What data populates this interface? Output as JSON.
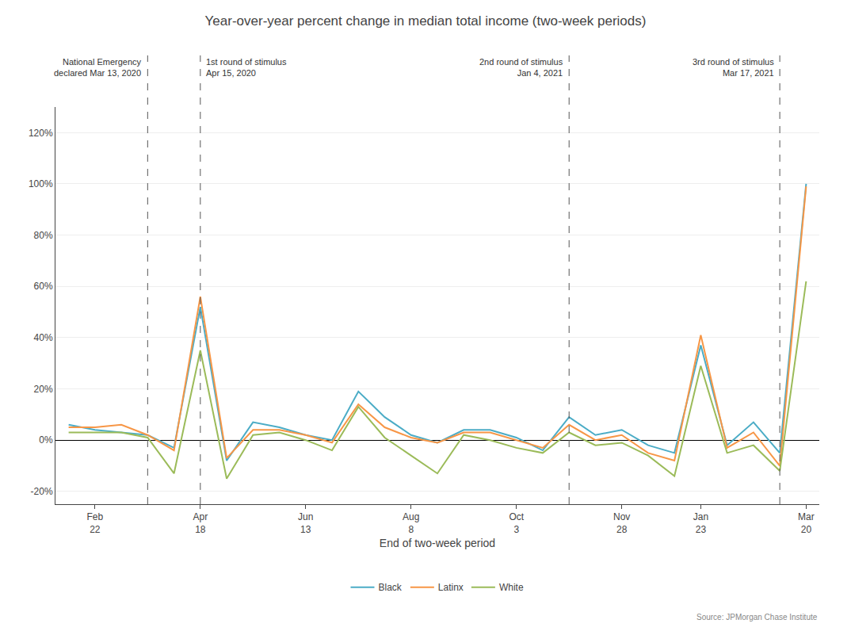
{
  "chart_data": {
    "type": "line",
    "title": "Year-over-year percent change in median total income (two-week periods)",
    "xlabel": "End of two-week period",
    "categories": [
      null,
      "Feb\n22",
      null,
      null,
      null,
      "Apr\n18",
      null,
      null,
      null,
      "Jun\n13",
      null,
      null,
      null,
      "Aug\n8",
      null,
      null,
      null,
      "Oct\n3",
      null,
      null,
      null,
      "Nov\n28",
      null,
      null,
      "Jan\n23",
      null,
      null,
      null,
      "Mar\n20"
    ],
    "series": [
      {
        "name": "Black",
        "color": "#4BACC6",
        "values": [
          6,
          4,
          3,
          2,
          -3,
          52,
          -8,
          7,
          5,
          2,
          0,
          19,
          9,
          2,
          -1,
          4,
          4,
          1,
          -4,
          9,
          2,
          4,
          -2,
          -5,
          37,
          -2,
          7,
          -5,
          100
        ]
      },
      {
        "name": "Latinx",
        "color": "#F79646",
        "values": [
          5,
          5,
          6,
          2,
          -4,
          56,
          -7,
          4,
          4,
          2,
          -1,
          14,
          5,
          1,
          -1,
          3,
          3,
          0,
          -3,
          6,
          0,
          2,
          -5,
          -8,
          41,
          -3,
          3,
          -10,
          99
        ]
      },
      {
        "name": "White",
        "color": "#9BBB59",
        "values": [
          3,
          3,
          3,
          1,
          -13,
          35,
          -15,
          2,
          3,
          0,
          -4,
          13,
          1,
          -6,
          -13,
          2,
          0,
          -3,
          -5,
          3,
          -2,
          -1,
          -6,
          -14,
          29,
          -5,
          -2,
          -12,
          62
        ]
      }
    ],
    "ylim": [
      -25,
      130
    ],
    "yticks": [
      {
        "value": -20,
        "label": "-20%"
      },
      {
        "value": 0,
        "label": "0%"
      },
      {
        "value": 20,
        "label": "20%"
      },
      {
        "value": 40,
        "label": "40%"
      },
      {
        "value": 60,
        "label": "60%"
      },
      {
        "value": 80,
        "label": "80%"
      },
      {
        "value": 100,
        "label": "100%"
      },
      {
        "value": 120,
        "label": "120%"
      }
    ],
    "grid": true,
    "legend": "bottom",
    "annotations": [
      {
        "text": "National Emergency\ndeclared Mar 13, 2020",
        "x": 3
      },
      {
        "text": "1st round of stimulus\nApr 15, 2020",
        "x": 5
      },
      {
        "text": "2nd round of stimulus\nJan 4, 2021",
        "x": 19
      },
      {
        "text": "3rd round of stimulus\nMar 17, 2021",
        "x": 27
      }
    ],
    "source": "Source: JPMorgan Chase Institute"
  }
}
